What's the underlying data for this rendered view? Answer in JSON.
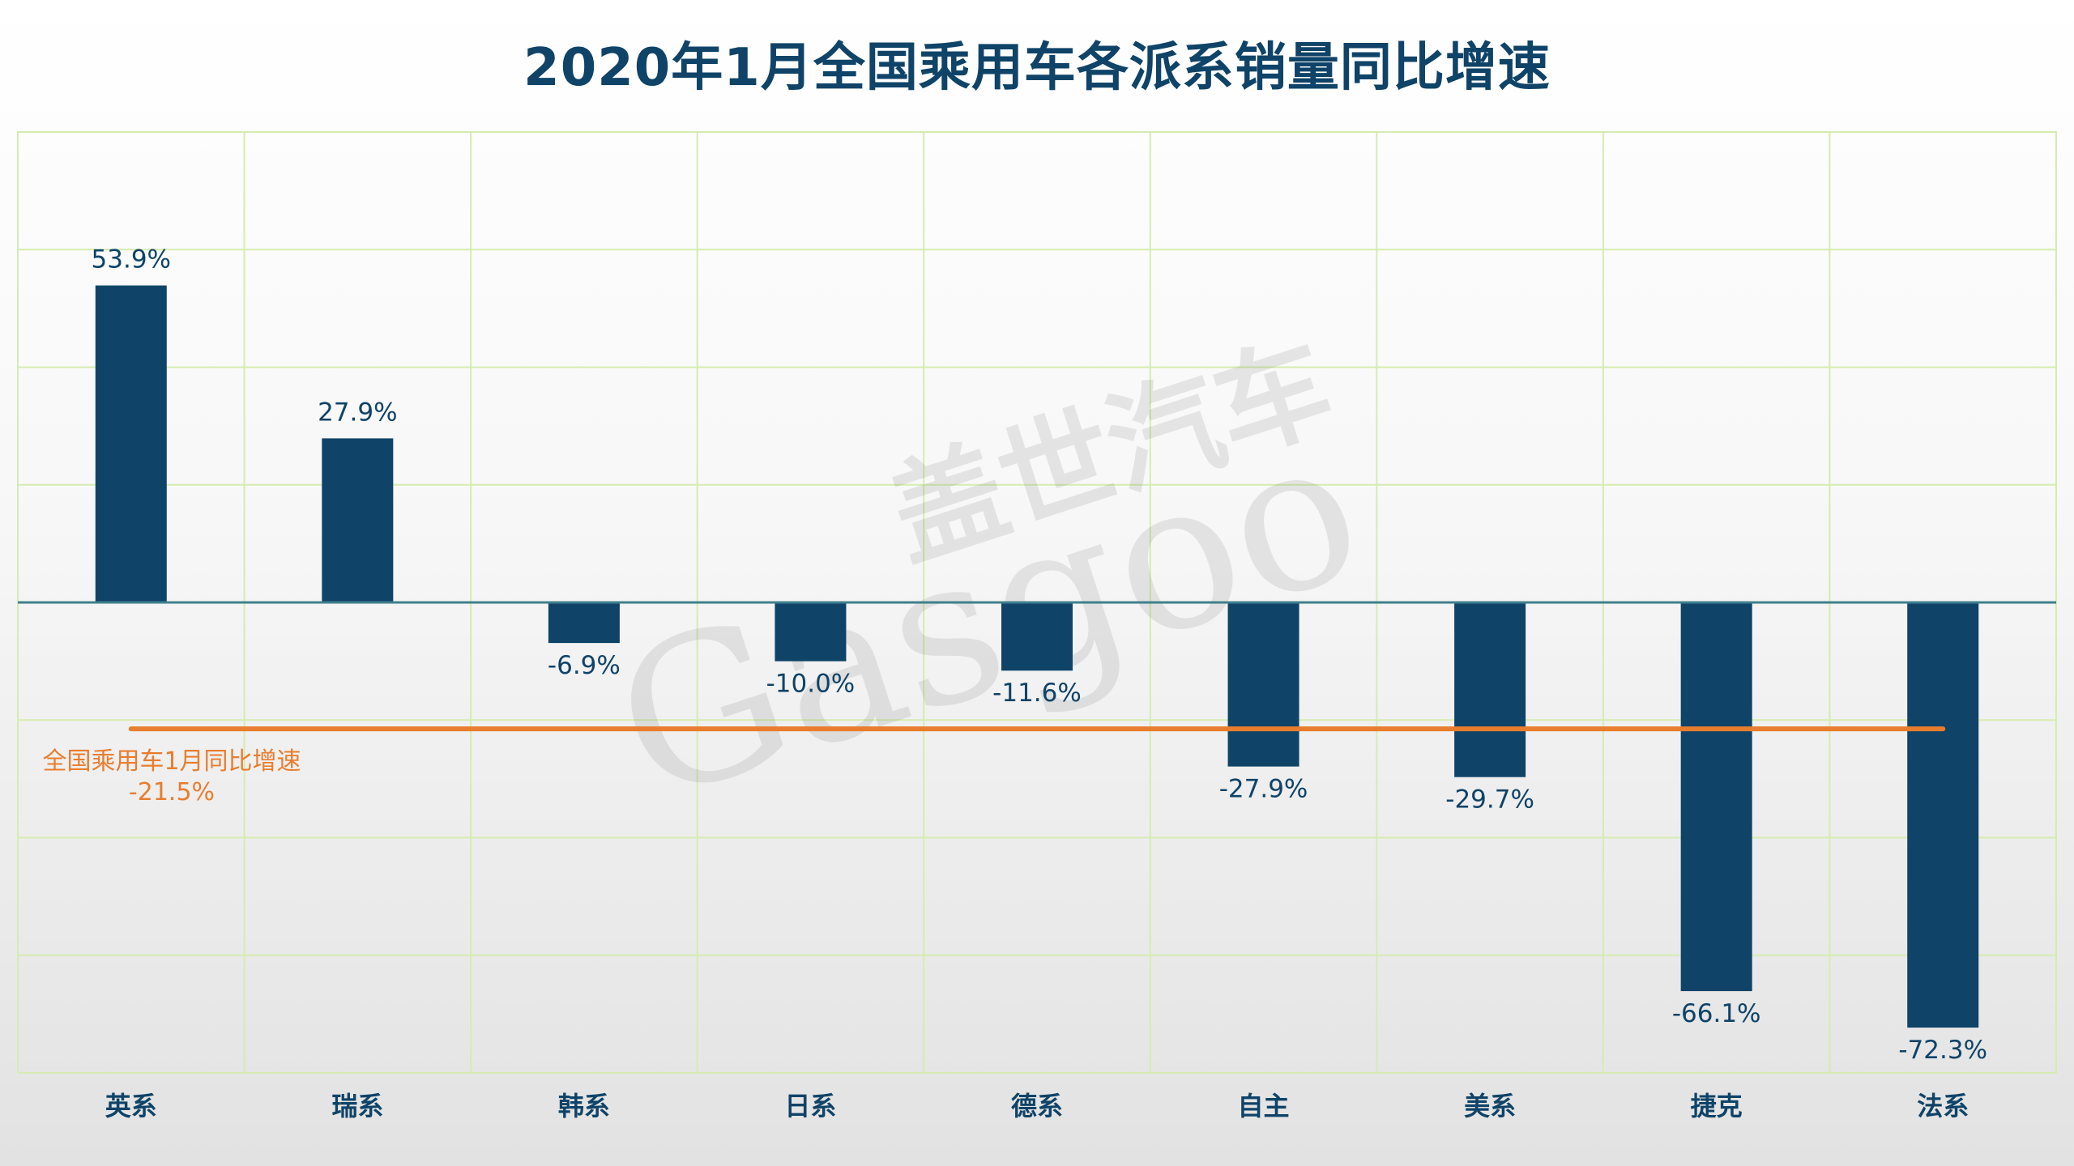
{
  "chart_data": {
    "type": "bar",
    "title": "2020年1月全国乘用车各派系销量同比增速",
    "categories": [
      "英系",
      "瑞系",
      "韩系",
      "日系",
      "德系",
      "自主",
      "美系",
      "捷克",
      "法系"
    ],
    "values": [
      53.9,
      27.9,
      -6.9,
      -10.0,
      -11.6,
      -27.9,
      -29.7,
      -66.1,
      -72.3
    ],
    "value_labels": [
      "53.9%",
      "27.9%",
      "-6.9%",
      "-10.0%",
      "-11.6%",
      "-27.9%",
      "-29.7%",
      "-66.1%",
      "-72.3%"
    ],
    "ylim": [
      -80,
      80
    ],
    "grid": true,
    "reference_line": {
      "value": -21.5,
      "label": "全国乘用车1月同比增速",
      "value_label": "-21.5%"
    },
    "colors": {
      "bar": "#0f4368",
      "reference": "#e87d2e",
      "grid": "#d5ecaf",
      "zero_line": "#3f7f8c",
      "title": "#0f4368"
    }
  },
  "watermark": {
    "cn": "盖世汽车",
    "en": "Gasgoo"
  }
}
